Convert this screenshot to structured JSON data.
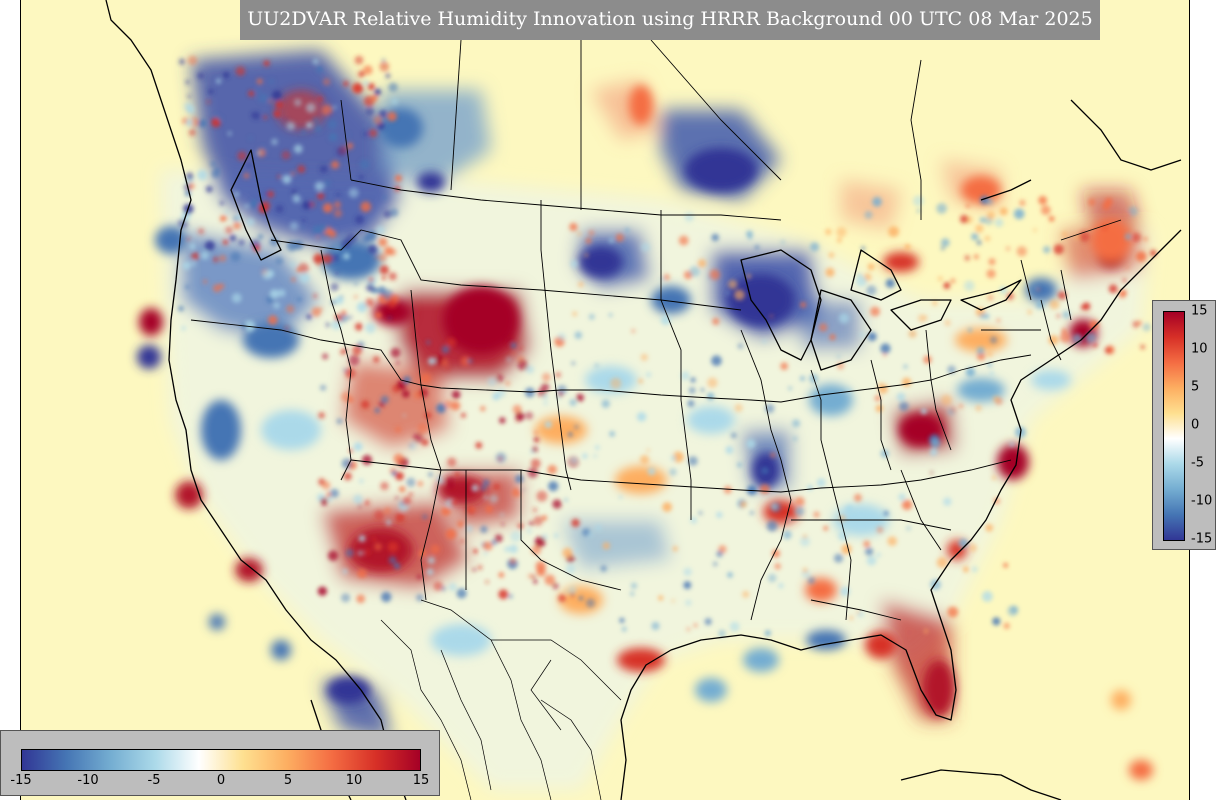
{
  "title": "UU2DVAR Relative Humidity Innovation using HRRR Background 00 UTC 08 Mar 2025",
  "colorbar": {
    "min": -15,
    "max": 15,
    "horizontal_ticks": [
      "-15",
      "-10",
      "-5",
      "0",
      "5",
      "10",
      "15"
    ],
    "vertical_ticks": [
      "15",
      "10",
      "5",
      "0",
      "-5",
      "-10",
      "-15"
    ],
    "colors": [
      "#313695",
      "#4575b4",
      "#74add1",
      "#abd9e9",
      "#ffffff",
      "#fee090",
      "#fdae61",
      "#f46d43",
      "#d73027",
      "#a50026"
    ]
  },
  "map": {
    "background_color": "#fdf8c0",
    "region": "Continental United States",
    "projection": "Lambert conformal"
  }
}
